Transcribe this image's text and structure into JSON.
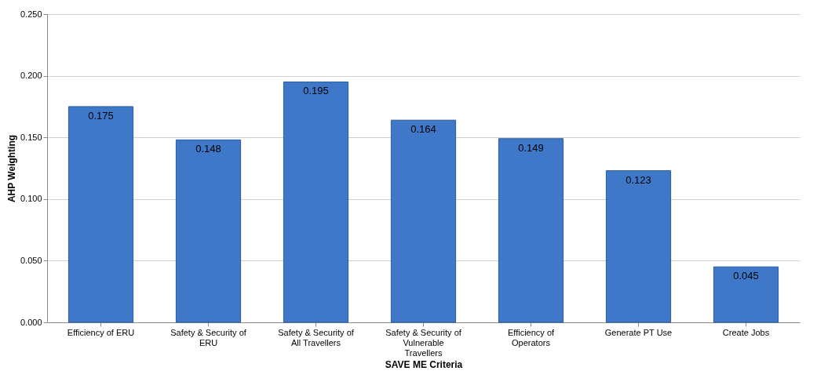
{
  "chart_data": {
    "type": "bar",
    "xlabel": "SAVE ME Criteria",
    "ylabel": "AHP Weighting",
    "categories": [
      "Efficiency of ERU",
      "Safety & Security of ERU",
      "Safety & Security of All Travellers",
      "Safety & Security of Vulnerable Travellers",
      "Efficiency of Operators",
      "Generate PT Use",
      "Create Jobs"
    ],
    "values": [
      0.175,
      0.148,
      0.195,
      0.164,
      0.149,
      0.123,
      0.045
    ],
    "value_labels": [
      "0.175",
      "0.148",
      "0.195",
      "0.164",
      "0.149",
      "0.123",
      "0.045"
    ],
    "color": "#3f78c8",
    "ylim": [
      0,
      0.25
    ],
    "yticks": [
      {
        "value": 0,
        "label": "0.000"
      },
      {
        "value": 0.05,
        "label": "0.050"
      },
      {
        "value": 0.1,
        "label": "0.100"
      },
      {
        "value": 0.15,
        "label": "0.150"
      },
      {
        "value": 0.2,
        "label": "0.200"
      },
      {
        "value": 0.25,
        "label": "0.250"
      }
    ],
    "grid": "y"
  }
}
